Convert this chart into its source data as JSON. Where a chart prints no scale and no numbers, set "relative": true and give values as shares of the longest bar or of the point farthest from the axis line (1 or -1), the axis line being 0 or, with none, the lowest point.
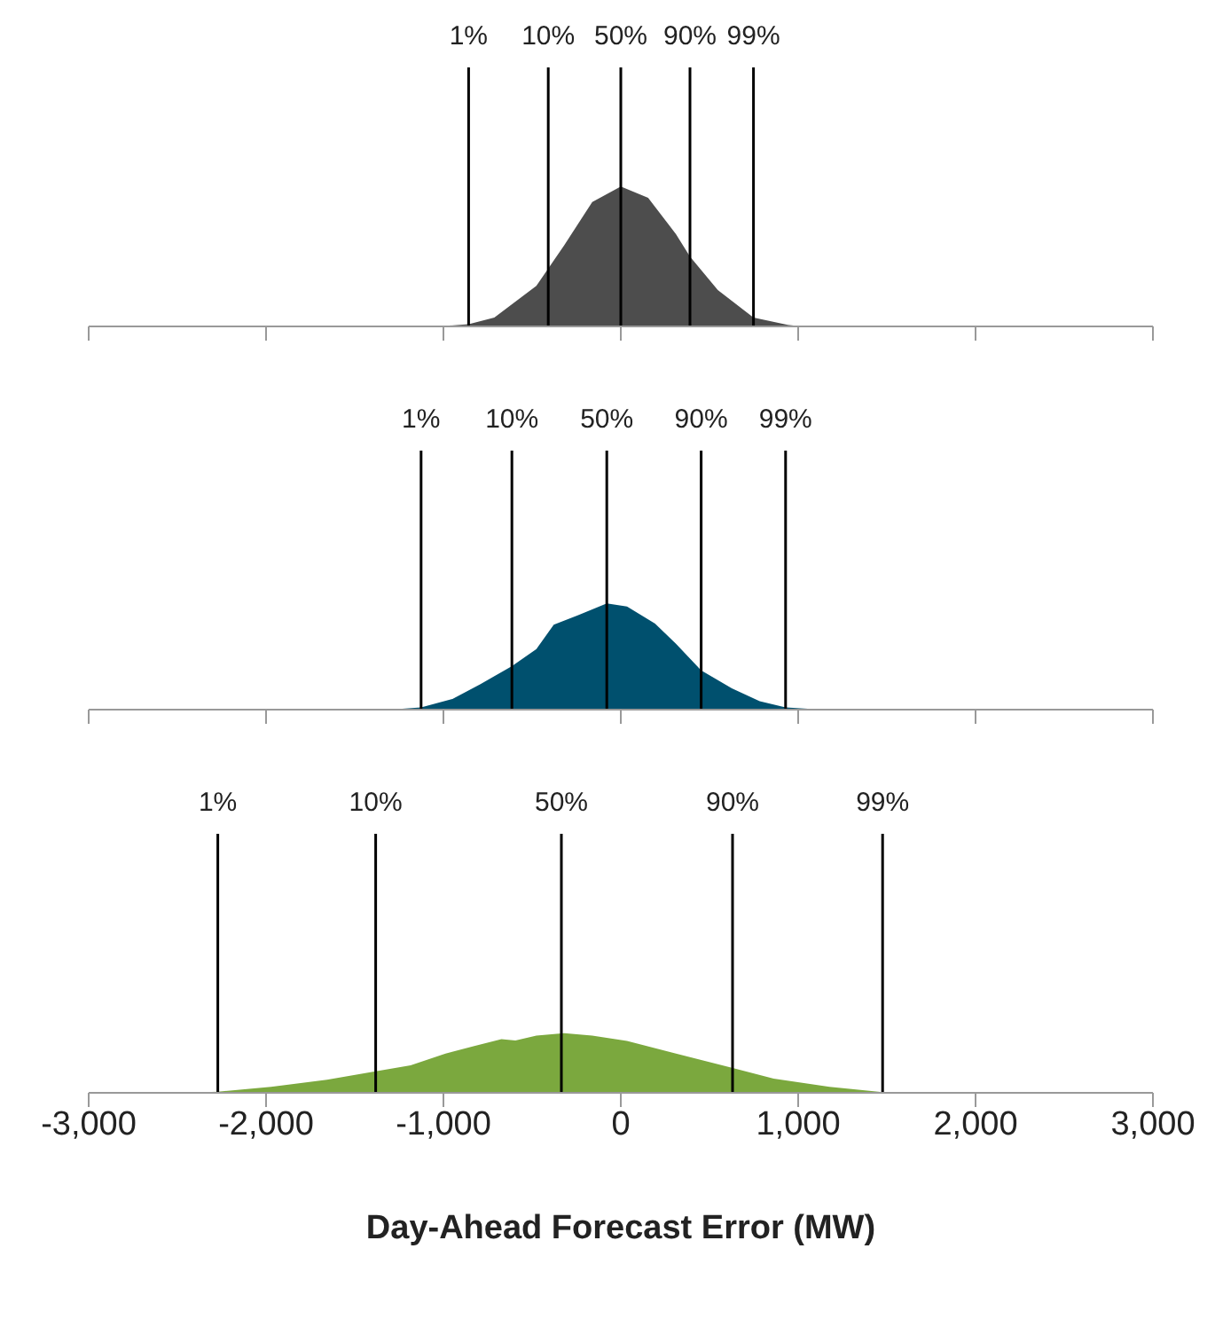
{
  "chart_data": [
    {
      "type": "area",
      "relative": true,
      "color": "#4d4d4d",
      "x": [
        -1028,
        -858,
        -713,
        -476,
        -319,
        -161,
        0,
        154,
        311,
        390,
        547,
        748,
        941,
        1020
      ],
      "values": [
        0,
        0.016,
        0.063,
        0.29,
        0.58,
        0.89,
        1,
        0.92,
        0.66,
        0.5,
        0.26,
        0.063,
        0.011,
        0
      ],
      "xlim": [
        -3000,
        3000
      ],
      "xticks": [
        {
          "value": -3000,
          "label": null
        },
        {
          "value": -2000,
          "label": null
        },
        {
          "value": -1000,
          "label": null
        },
        {
          "value": 0,
          "label": null
        },
        {
          "value": 1000,
          "label": null
        },
        {
          "value": 2000,
          "label": null
        },
        {
          "value": 3000,
          "label": null
        }
      ],
      "tick_labels": false,
      "ref_lines": [
        {
          "axis": "x",
          "value": -858
        },
        {
          "axis": "x",
          "value": -409
        },
        {
          "axis": "x",
          "value": 0
        },
        {
          "axis": "x",
          "value": 390
        },
        {
          "axis": "x",
          "value": 748
        }
      ],
      "annotations": [
        "1%",
        "10%",
        "50%",
        "90%",
        "99%"
      ]
    },
    {
      "type": "area",
      "relative": true,
      "color": "#00506e",
      "x": [
        -1303,
        -1126,
        -949,
        -791,
        -614,
        -476,
        -378,
        -240,
        -79,
        35,
        193,
        311,
        453,
        626,
        783,
        929,
        1138
      ],
      "values": [
        0,
        0.02,
        0.1,
        0.24,
        0.41,
        0.57,
        0.8,
        0.89,
        1,
        0.97,
        0.81,
        0.62,
        0.37,
        0.2,
        0.08,
        0.02,
        0
      ],
      "xlim": [
        -3000,
        3000
      ],
      "xticks": [
        {
          "value": -3000,
          "label": null
        },
        {
          "value": -2000,
          "label": null
        },
        {
          "value": -1000,
          "label": null
        },
        {
          "value": 0,
          "label": null
        },
        {
          "value": 1000,
          "label": null
        },
        {
          "value": 2000,
          "label": null
        },
        {
          "value": 3000,
          "label": null
        }
      ],
      "tick_labels": false,
      "ref_lines": [
        {
          "axis": "x",
          "value": -1126
        },
        {
          "axis": "x",
          "value": -614
        },
        {
          "axis": "x",
          "value": -79
        },
        {
          "axis": "x",
          "value": 453
        },
        {
          "axis": "x",
          "value": 929
        }
      ],
      "annotations": [
        "1%",
        "10%",
        "50%",
        "90%",
        "99%"
      ]
    },
    {
      "type": "area",
      "relative": true,
      "color": "#7ba83e",
      "xlabel": "Day-Ahead Forecast Error (MW)",
      "x": [
        -2445,
        -2272,
        -1972,
        -1657,
        -1382,
        -1185,
        -988,
        -831,
        -673,
        -594,
        -476,
        -319,
        -161,
        35,
        311,
        626,
        862,
        1177,
        1476,
        1650
      ],
      "values": [
        0,
        0.02,
        0.1,
        0.22,
        0.36,
        0.46,
        0.66,
        0.78,
        0.9,
        0.88,
        0.96,
        1,
        0.96,
        0.87,
        0.66,
        0.42,
        0.24,
        0.1,
        0.01,
        0
      ],
      "xlim": [
        -3000,
        3000
      ],
      "xticks": [
        {
          "value": -3000,
          "label": "-3,000"
        },
        {
          "value": -2000,
          "label": "-2,000"
        },
        {
          "value": -1000,
          "label": "-1,000"
        },
        0,
        {
          "value": 1000,
          "label": "1,000"
        },
        {
          "value": 2000,
          "label": "2,000"
        },
        {
          "value": 3000,
          "label": "3,000"
        }
      ],
      "tick_labels": "x",
      "ref_lines": [
        {
          "axis": "x",
          "value": -2272
        },
        {
          "axis": "x",
          "value": -1382
        },
        {
          "axis": "x",
          "value": -335
        },
        {
          "axis": "x",
          "value": 630
        },
        {
          "axis": "x",
          "value": 1476
        }
      ],
      "annotations": [
        "1%",
        "10%",
        "50%",
        "90%",
        "99%"
      ]
    }
  ]
}
